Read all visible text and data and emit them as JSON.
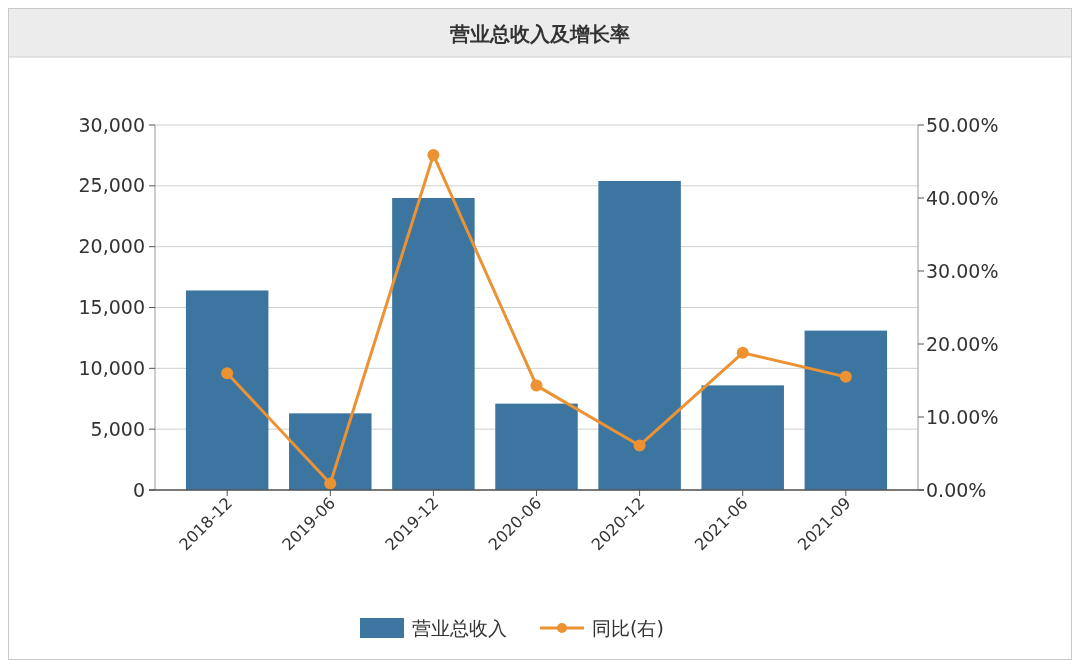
{
  "chart_data": {
    "type": "bar",
    "title": "营业总收入及增长率",
    "categories": [
      "2018-12",
      "2019-06",
      "2019-12",
      "2020-06",
      "2020-12",
      "2021-06",
      "2021-09"
    ],
    "series": [
      {
        "name": "营业总收入",
        "color": "#3c76a0",
        "values": [
          16400,
          6300,
          24000,
          7100,
          25400,
          8600,
          13100
        ]
      },
      {
        "name": "同比(右)",
        "type": "line",
        "axis": "y2",
        "color": "#ec9232",
        "marker": "circle",
        "values": [
          16.0,
          0.9,
          45.9,
          14.3,
          6.1,
          18.8,
          15.5
        ]
      }
    ],
    "ylim": [
      0,
      30000
    ],
    "yticks": [
      {
        "value": 0,
        "label": "0"
      },
      {
        "value": 5000,
        "label": "5,000"
      },
      {
        "value": 10000,
        "label": "10,000"
      },
      {
        "value": 15000,
        "label": "15,000"
      },
      {
        "value": 20000,
        "label": "20,000"
      },
      {
        "value": 25000,
        "label": "25,000"
      },
      {
        "value": 30000,
        "label": "30,000"
      }
    ],
    "y2lim": [
      0,
      50
    ],
    "y2ticks": [
      {
        "value": 0,
        "label": "0.00%"
      },
      {
        "value": 10,
        "label": "10.00%"
      },
      {
        "value": 20,
        "label": "20.00%"
      },
      {
        "value": 30,
        "label": "30.00%"
      },
      {
        "value": 40,
        "label": "40.00%"
      },
      {
        "value": 50,
        "label": "50.00%"
      }
    ],
    "grid": "y",
    "legend": "bottom"
  }
}
